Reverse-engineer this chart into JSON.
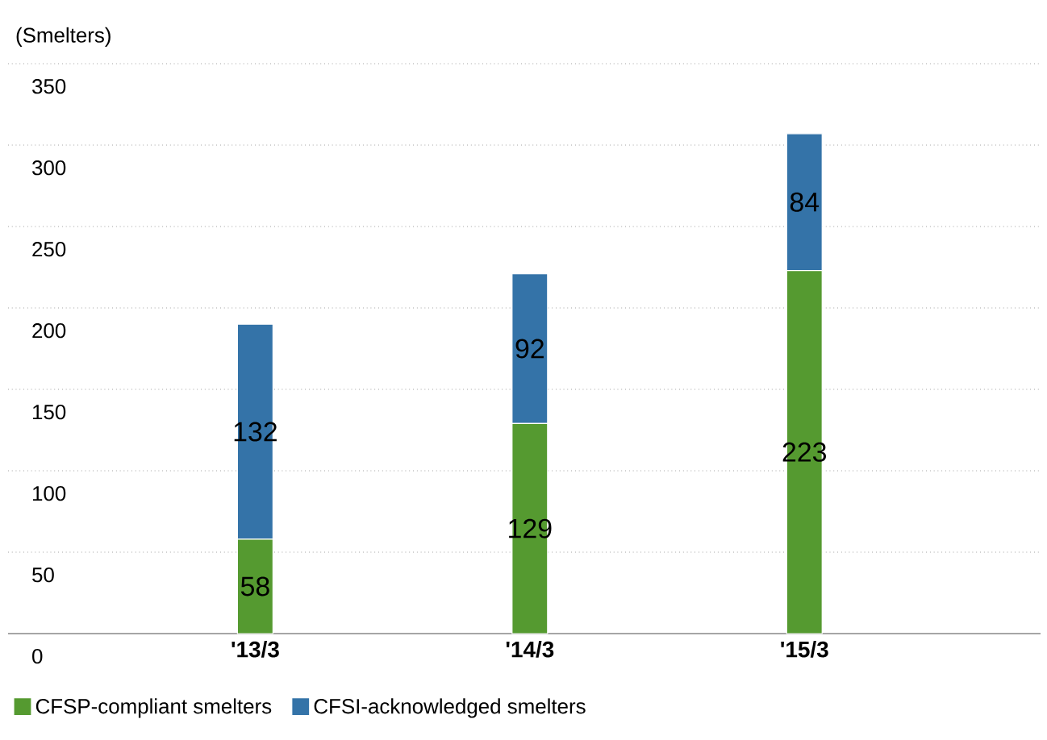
{
  "chart_data": {
    "type": "bar",
    "stacked": true,
    "ylabel": "(Smelters)",
    "categories": [
      "'13/3",
      "'14/3",
      "'15/3"
    ],
    "series": [
      {
        "name": "CFSP-compliant smelters",
        "color": "#559a30",
        "values": [
          58,
          129,
          223
        ]
      },
      {
        "name": "CFSI-acknowledged smelters",
        "color": "#3473a8",
        "values": [
          132,
          92,
          84
        ]
      }
    ],
    "ylim": [
      0,
      350
    ],
    "yticks": [
      0,
      50,
      100,
      150,
      200,
      250,
      300,
      350
    ],
    "grid": "y",
    "data_labels": true,
    "legend": "bottom"
  }
}
